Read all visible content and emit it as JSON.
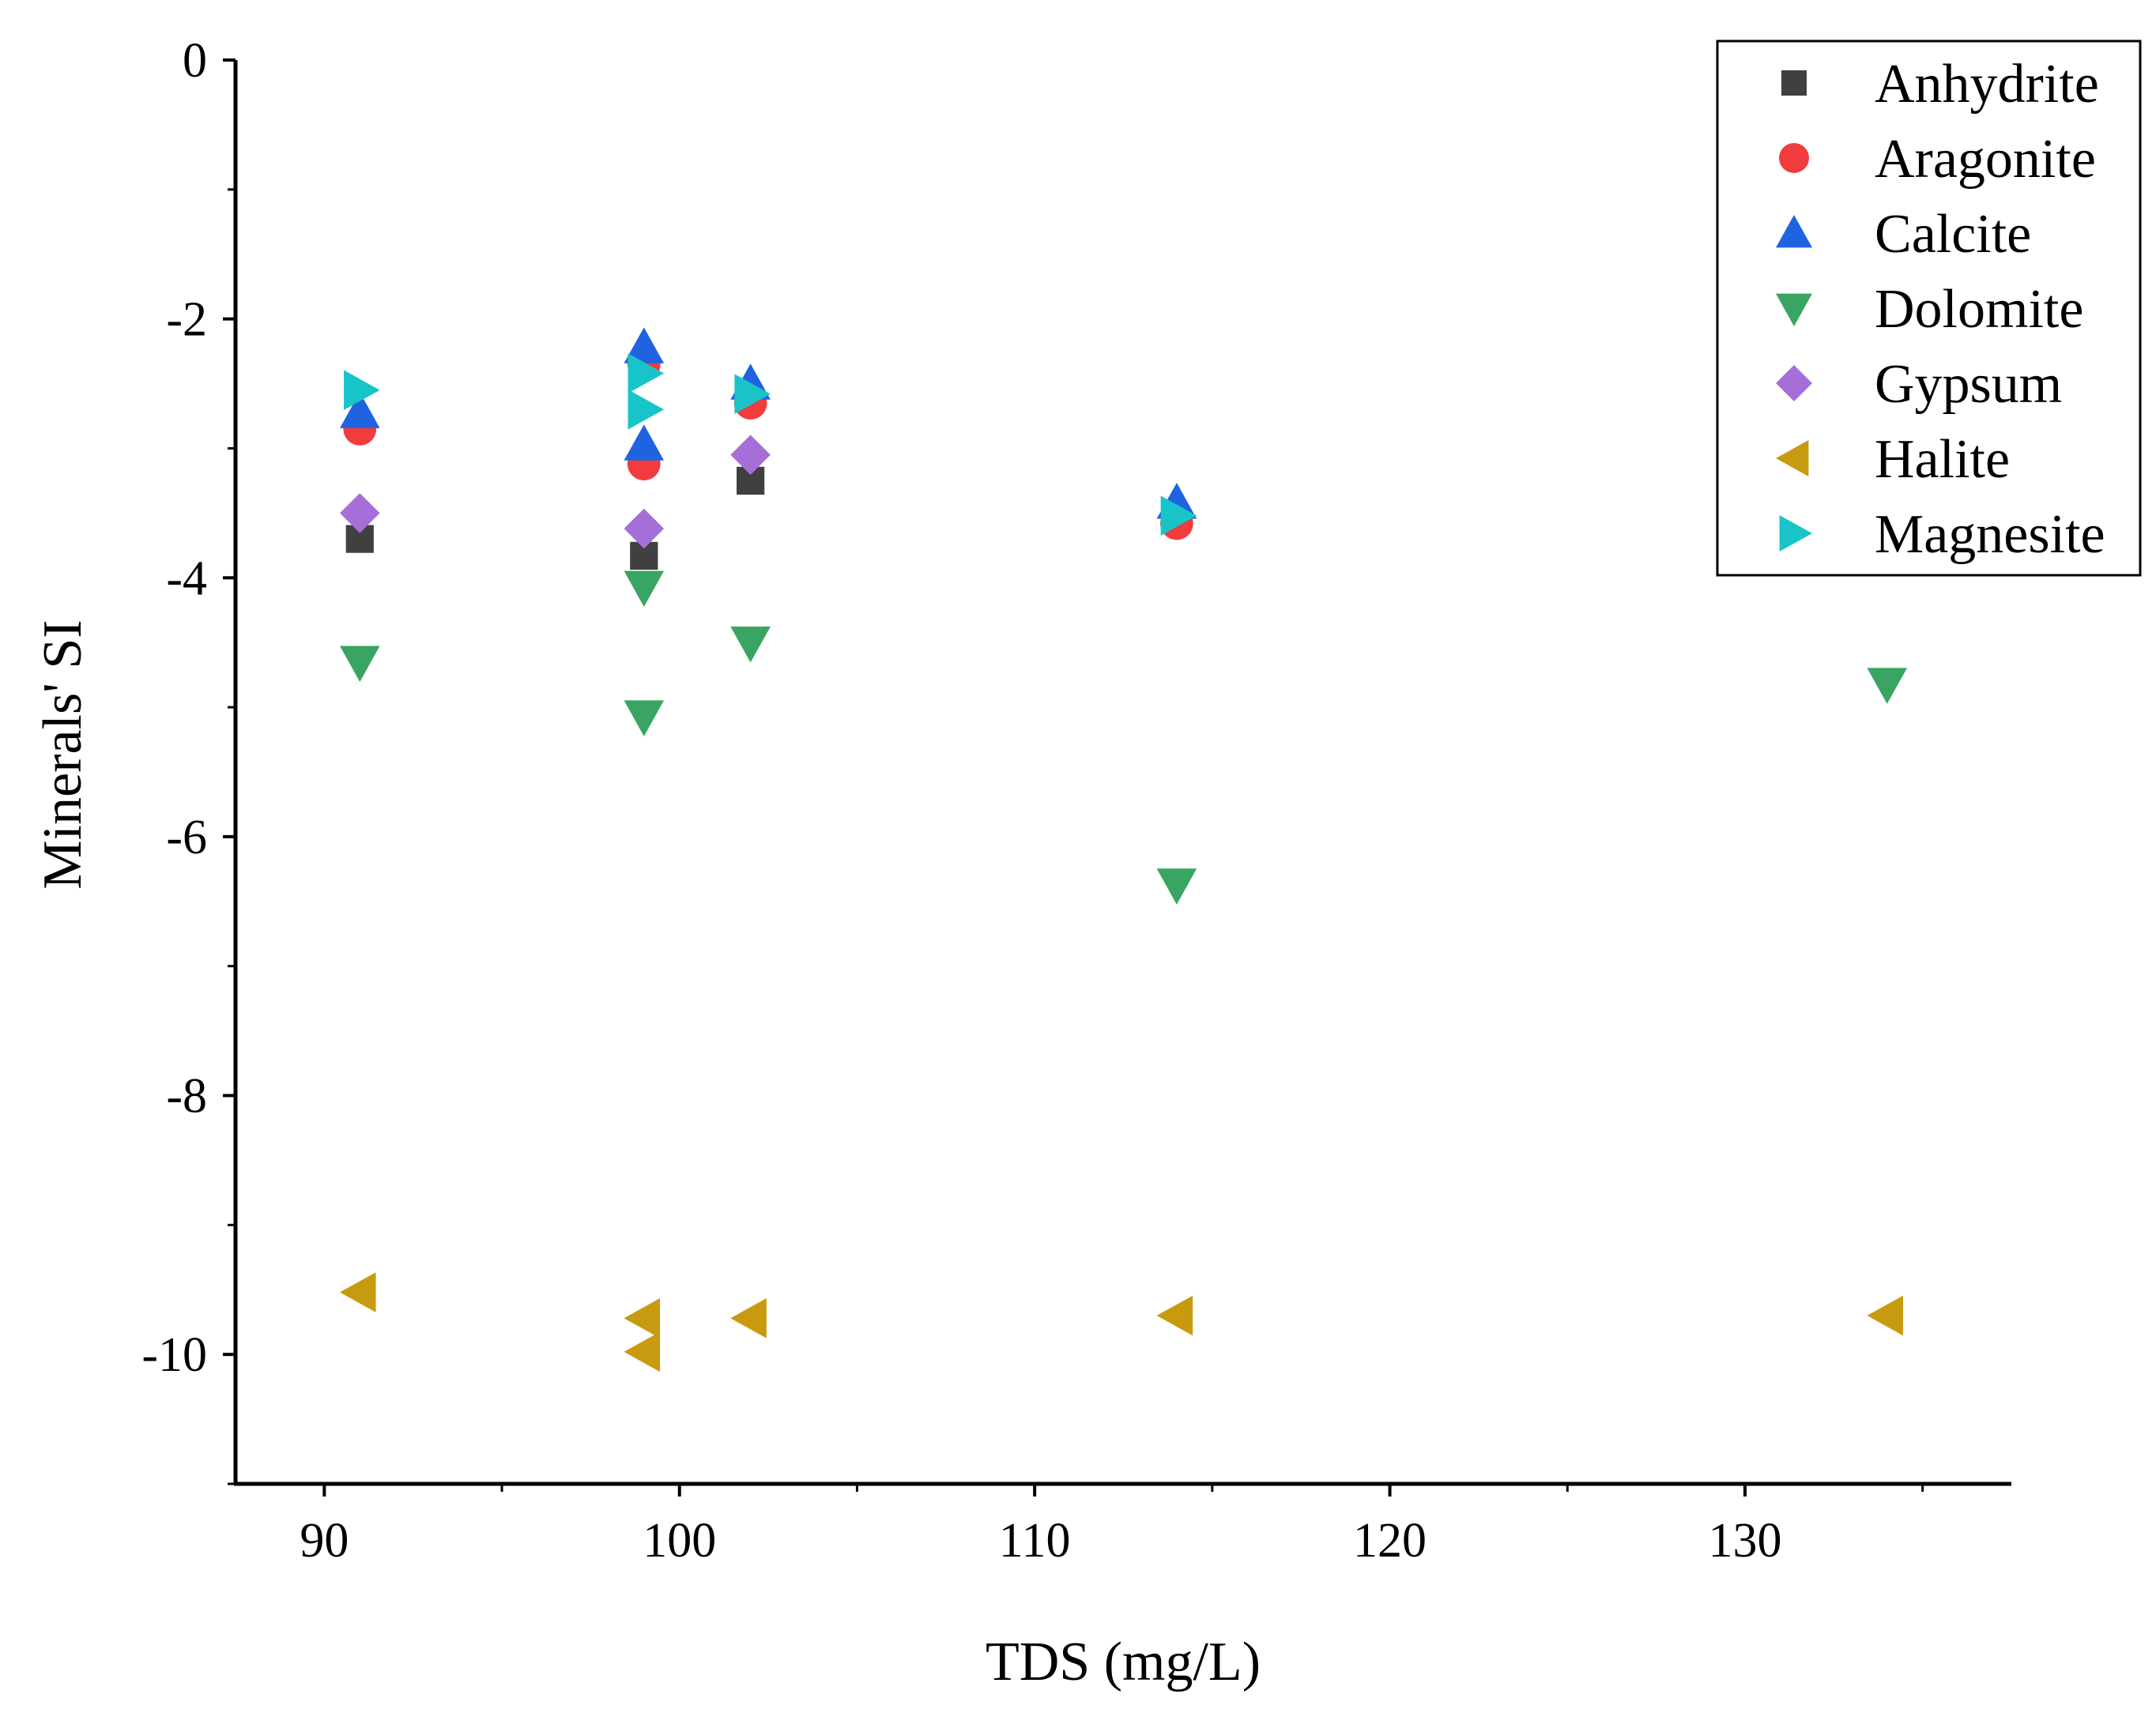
{
  "chart_data": {
    "type": "scatter",
    "title": "",
    "xlabel": "TDS (mg/L)",
    "ylabel": "Minerals' SI",
    "xlim": [
      87.5,
      137.5
    ],
    "ylim": [
      -11,
      0
    ],
    "xticks": [
      90,
      100,
      110,
      120,
      130
    ],
    "xtick_labels": [
      "90",
      "100",
      "110",
      "120",
      "130"
    ],
    "yticks": [
      0,
      -2,
      -4,
      -6,
      -8,
      -10
    ],
    "ytick_labels": [
      "0",
      "-2",
      "-4",
      "-6",
      "-8",
      "-10"
    ],
    "legend_position": "top-right",
    "grid": false,
    "series": [
      {
        "name": "Anhydrite",
        "marker": "square",
        "color": "#404040",
        "points": [
          [
            91,
            -3.7
          ],
          [
            99,
            -3.83
          ],
          [
            102,
            -3.25
          ]
        ]
      },
      {
        "name": "Aragonite",
        "marker": "circle",
        "color": "#f03c3c",
        "points": [
          [
            91,
            -2.85
          ],
          [
            99,
            -2.35
          ],
          [
            99,
            -3.12
          ],
          [
            102,
            -2.65
          ],
          [
            114,
            -3.58
          ]
        ]
      },
      {
        "name": "Calcite",
        "marker": "triangle-up",
        "color": "#1f63e0",
        "points": [
          [
            91,
            -2.72
          ],
          [
            99,
            -2.22
          ],
          [
            99,
            -2.97
          ],
          [
            102,
            -2.5
          ],
          [
            114,
            -3.42
          ]
        ]
      },
      {
        "name": "Dolomite",
        "marker": "triangle-down",
        "color": "#3aa562",
        "points": [
          [
            91,
            -4.65
          ],
          [
            99,
            -4.07
          ],
          [
            99,
            -5.07
          ],
          [
            102,
            -4.5
          ],
          [
            114,
            -6.37
          ],
          [
            134,
            -4.82
          ]
        ]
      },
      {
        "name": "Gypsum",
        "marker": "diamond",
        "color": "#a66fd8",
        "points": [
          [
            91,
            -3.5
          ],
          [
            99,
            -3.62
          ],
          [
            102,
            -3.05
          ]
        ]
      },
      {
        "name": "Halite",
        "marker": "triangle-left",
        "color": "#c89a10",
        "points": [
          [
            91,
            -9.52
          ],
          [
            99,
            -9.72
          ],
          [
            99,
            -9.98
          ],
          [
            102,
            -9.72
          ],
          [
            114,
            -9.7
          ],
          [
            134,
            -9.7
          ]
        ]
      },
      {
        "name": "Magnesite",
        "marker": "triangle-right",
        "color": "#19c4c8",
        "points": [
          [
            91,
            -2.55
          ],
          [
            99,
            -2.42
          ],
          [
            99,
            -2.7
          ],
          [
            102,
            -2.58
          ],
          [
            114,
            -3.52
          ]
        ]
      }
    ]
  }
}
